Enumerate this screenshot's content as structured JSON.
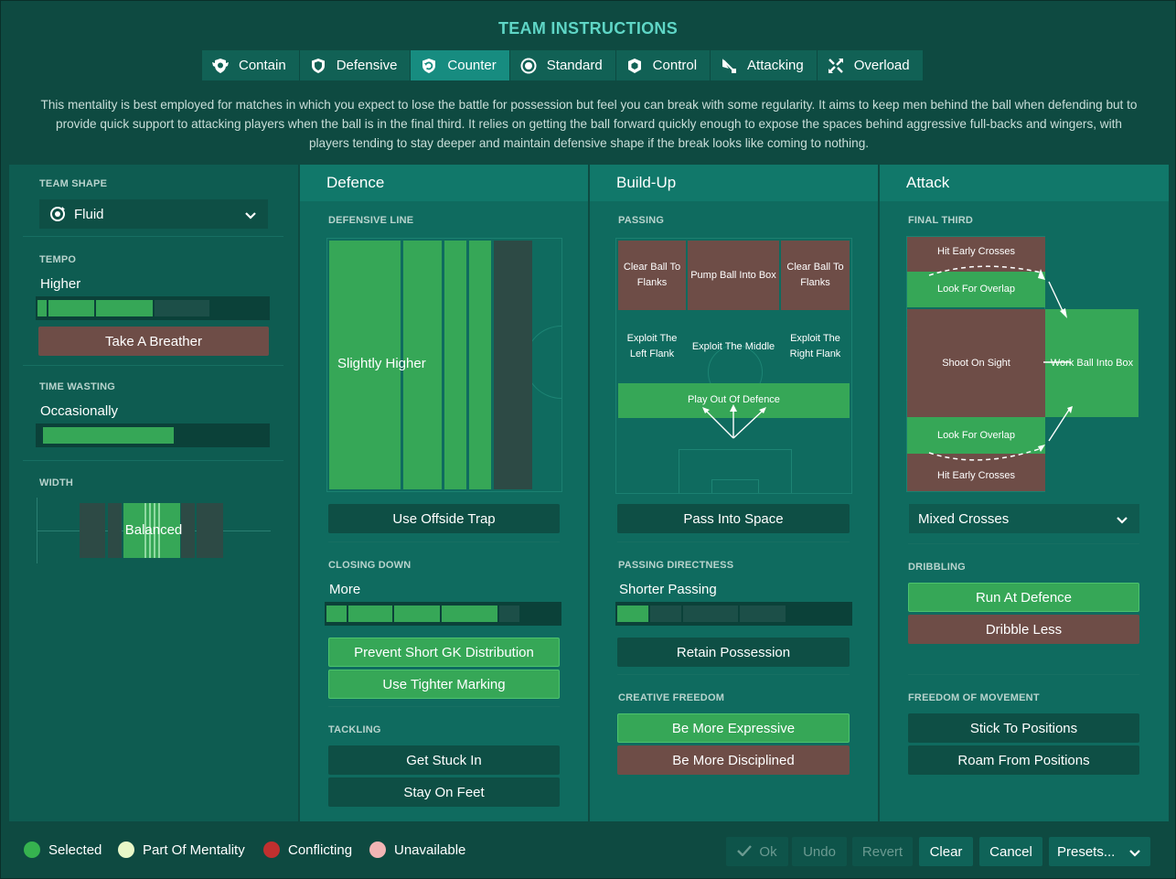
{
  "title": "TEAM INSTRUCTIONS",
  "mentalities": [
    {
      "label": "Contain",
      "icon": "shield-wings-icon"
    },
    {
      "label": "Defensive",
      "icon": "shield-icon"
    },
    {
      "label": "Counter",
      "icon": "counter-shield-icon",
      "active": true
    },
    {
      "label": "Standard",
      "icon": "balance-circle-icon"
    },
    {
      "label": "Control",
      "icon": "control-shield-icon"
    },
    {
      "label": "Attacking",
      "icon": "attacking-flag-icon"
    },
    {
      "label": "Overload",
      "icon": "overload-arrows-icon"
    }
  ],
  "description": "This mentality is best employed for matches in which you expect to lose the battle for possession but feel you can break with some regularity.  It aims to keep men behind the ball when defending but to provide quick support to attacking players when the ball is in the final third. It relies on getting the ball forward quickly enough to expose the spaces behind aggressive full-backs and wingers, with players tending to stay deeper and maintain defensive shape if the break looks like coming to nothing.",
  "left": {
    "team_shape_label": "TEAM SHAPE",
    "team_shape_value": "Fluid",
    "tempo_label": "TEMPO",
    "tempo_value": "Higher",
    "tempo_level": 0.7,
    "take_breather": "Take A Breather",
    "time_wasting_label": "TIME WASTING",
    "time_wasting_value": "Occasionally",
    "time_wasting_level": 0.55,
    "width_label": "WIDTH",
    "width_value": "Balanced"
  },
  "defence": {
    "header": "Defence",
    "defensive_line_label": "DEFENSIVE LINE",
    "defensive_line_value": "Slightly Higher",
    "offside_trap": "Use Offside Trap",
    "closing_down_label": "CLOSING DOWN",
    "closing_down_value": "More",
    "closing_down_level": 0.75,
    "prevent_gk": "Prevent Short GK Distribution",
    "tighter_marking": "Use Tighter Marking",
    "tackling_label": "TACKLING",
    "get_stuck_in": "Get Stuck In",
    "stay_on_feet": "Stay On Feet"
  },
  "buildup": {
    "header": "Build-Up",
    "passing_label": "PASSING",
    "clear_left": "Clear Ball To Flanks",
    "pump_box": "Pump Ball Into Box",
    "clear_right": "Clear Ball To Flanks",
    "exploit_left": "Exploit The Left Flank",
    "exploit_middle": "Exploit The Middle",
    "exploit_right": "Exploit The Right Flank",
    "play_out": "Play Out Of Defence",
    "pass_space": "Pass Into Space",
    "directness_label": "PASSING DIRECTNESS",
    "directness_value": "Shorter Passing",
    "directness_level": 0.2,
    "retain": "Retain Possession",
    "creative_label": "CREATIVE FREEDOM",
    "expressive": "Be More Expressive",
    "disciplined": "Be More Disciplined"
  },
  "attack": {
    "header": "Attack",
    "final_third_label": "FINAL THIRD",
    "early_top": "Hit Early Crosses",
    "overlap_top": "Look For Overlap",
    "shoot": "Shoot On Sight",
    "work_box": "Work Ball Into Box",
    "overlap_bottom": "Look For Overlap",
    "early_bottom": "Hit Early Crosses",
    "crosses_value": "Mixed Crosses",
    "dribbling_label": "DRIBBLING",
    "run_at_defence": "Run At Defence",
    "dribble_less": "Dribble Less",
    "freedom_label": "FREEDOM OF MOVEMENT",
    "stick": "Stick To Positions",
    "roam": "Roam From Positions"
  },
  "legend": [
    {
      "label": "Selected",
      "color": "#36b24f"
    },
    {
      "label": "Part Of Mentality",
      "color": "#e8f7c8"
    },
    {
      "label": "Conflicting",
      "color": "#c0302f"
    },
    {
      "label": "Unavailable",
      "color": "#f2b5b5"
    }
  ],
  "buttons": {
    "ok": "Ok",
    "undo": "Undo",
    "revert": "Revert",
    "clear": "Clear",
    "cancel": "Cancel",
    "presets": "Presets..."
  },
  "colors": {
    "selected": "#36a757",
    "conflicting": "#6e4d47",
    "accent": "#5fd6c6"
  }
}
